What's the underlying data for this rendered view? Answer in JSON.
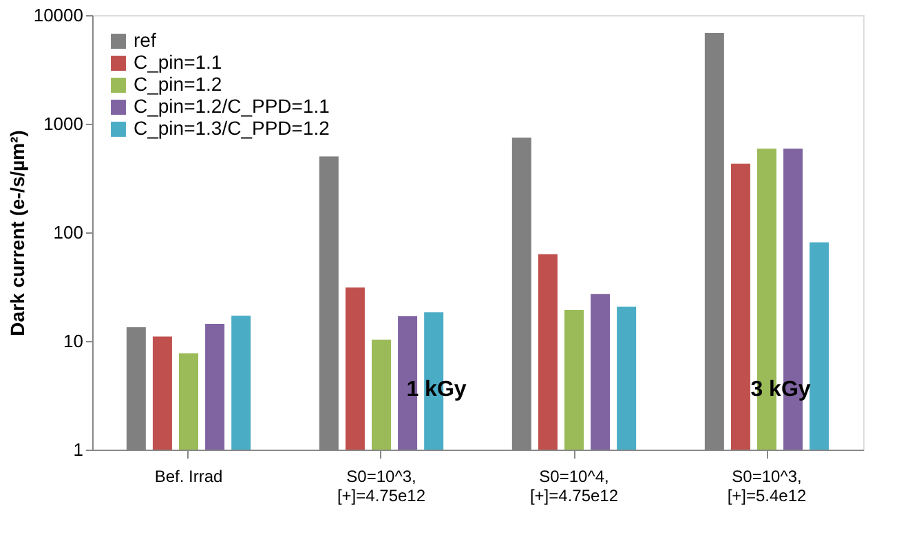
{
  "chart_data": {
    "type": "bar",
    "ylabel": "Dark current (e-/s/µm²)",
    "categories": [
      "Bef. Irrad",
      "S0=10^3,\n[+]=4.75e12",
      "S0=10^4,\n[+]=4.75e12",
      "S0=10^3,\n[+]=5.4e12"
    ],
    "series": [
      {
        "name": "ref",
        "color": "#808080",
        "values": [
          13.4,
          500,
          745,
          6840
        ]
      },
      {
        "name": "C_pin=1.1",
        "color": "#c0504d",
        "values": [
          11,
          31,
          63,
          430
        ]
      },
      {
        "name": "C_pin=1.2",
        "color": "#9bbb59",
        "values": [
          7.7,
          10.3,
          19.3,
          590
        ]
      },
      {
        "name": "C_pin=1.2/C_PPD=1.1",
        "color": "#8064a2",
        "values": [
          14.4,
          16.9,
          27,
          590
        ]
      },
      {
        "name": "C_pin=1.3/C_PPD=1.2",
        "color": "#4bacc6",
        "values": [
          17.1,
          18.4,
          20.7,
          81
        ]
      }
    ],
    "log": true,
    "ylim": [
      1,
      10000
    ],
    "yticks": [
      1,
      10,
      100,
      1000,
      10000
    ],
    "grid": false,
    "legend": "top left",
    "annotations": [
      "1 kGy",
      "3 kGy"
    ]
  }
}
